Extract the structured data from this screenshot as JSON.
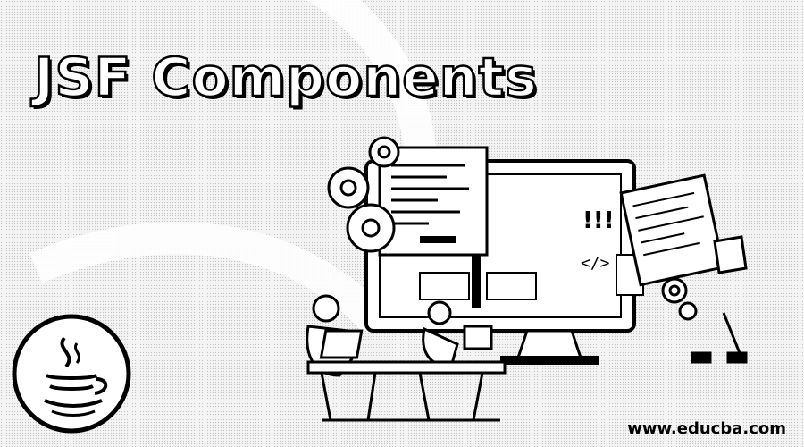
{
  "banner": {
    "title": "JSF Components",
    "url": "www.educba.com",
    "screen_symbols": {
      "alert": "!!!",
      "code_tag": "</>"
    }
  },
  "icons": {
    "logo": "java-coffee-cup-icon",
    "gears": "gear-icon",
    "monitor": "monitor-icon",
    "people": "person-at-desk-icon"
  },
  "colors": {
    "ink": "#000000",
    "paper": "#ffffff",
    "halftone": "#9a9a9a"
  }
}
